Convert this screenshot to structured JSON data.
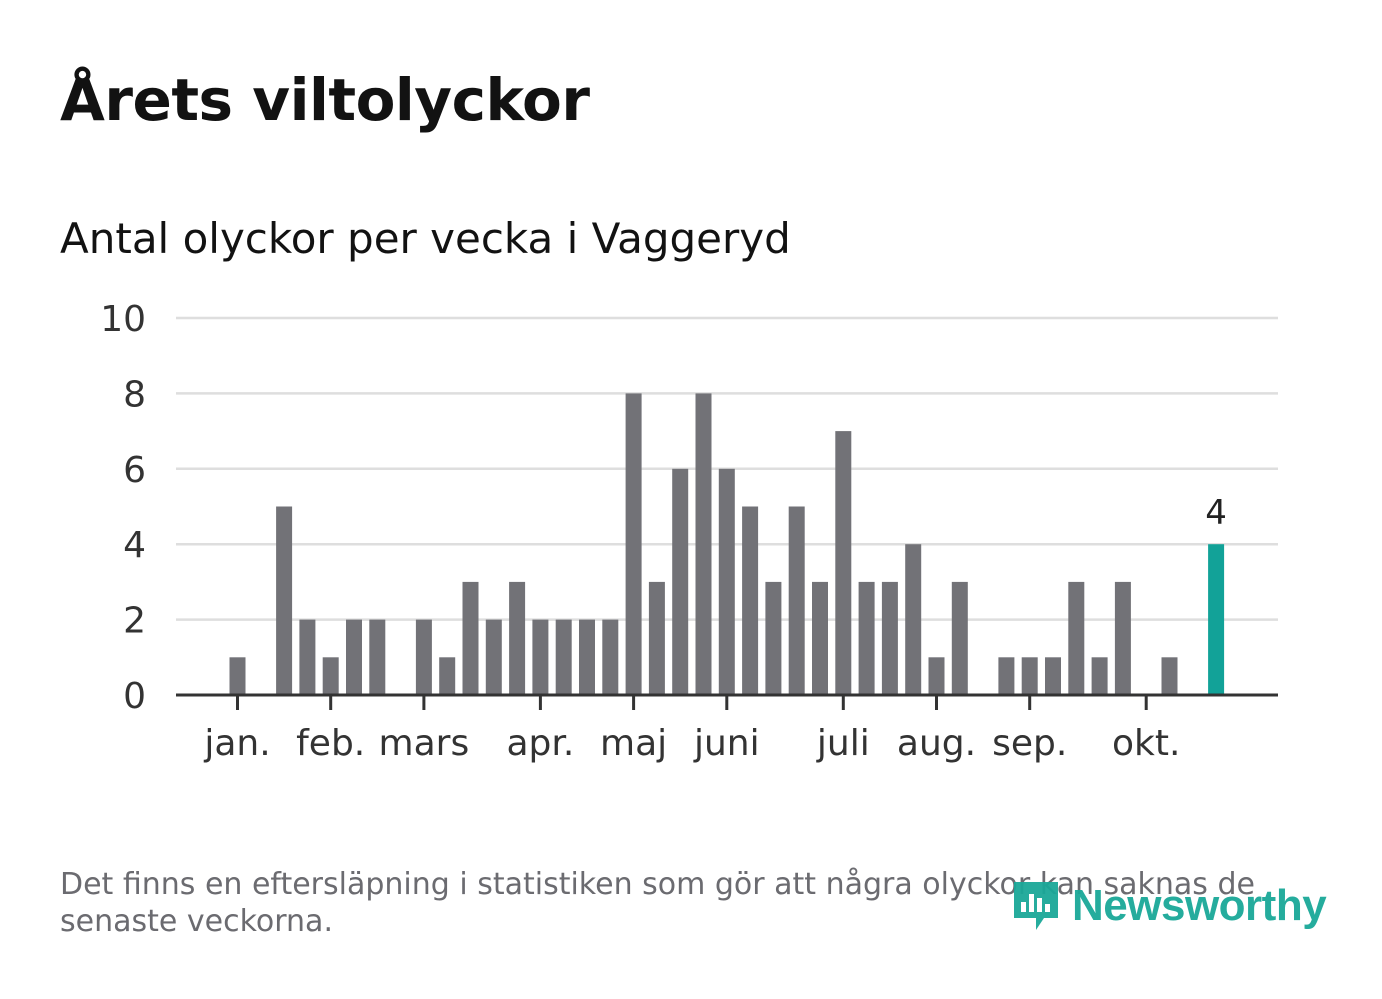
{
  "title": "Årets viltolyckor",
  "subtitle": "Antal olyckor per vecka i Vaggeryd",
  "footnote": "Det finns en eftersläpning i statistiken som gör att några olyckor kan saknas de senaste veckorna.",
  "logo": {
    "text": "Newsworthy",
    "icon": "newsworthy-logo-icon"
  },
  "colors": {
    "bar": "#727277",
    "highlight": "#12a298",
    "grid": "#dedede",
    "axis": "#333333",
    "logo": "#1aa898"
  },
  "chart_data": {
    "type": "bar",
    "title": "Antal olyckor per vecka i Vaggeryd",
    "xlabel": "",
    "ylabel": "",
    "ylim": [
      0,
      10
    ],
    "yticks": [
      0,
      2,
      4,
      6,
      8,
      10
    ],
    "grid": true,
    "weeks": [
      1,
      2,
      3,
      4,
      5,
      6,
      7,
      8,
      9,
      10,
      11,
      12,
      13,
      14,
      15,
      16,
      17,
      18,
      19,
      20,
      21,
      22,
      23,
      24,
      25,
      26,
      27,
      28,
      29,
      30,
      31,
      32,
      33,
      34,
      35,
      36,
      37,
      38,
      39,
      40,
      41,
      42,
      43
    ],
    "values": [
      1,
      0,
      5,
      2,
      1,
      2,
      2,
      0,
      2,
      1,
      3,
      2,
      3,
      2,
      2,
      2,
      2,
      8,
      3,
      6,
      8,
      6,
      5,
      3,
      5,
      3,
      7,
      3,
      3,
      4,
      1,
      3,
      0,
      1,
      1,
      1,
      3,
      1,
      3,
      0,
      1,
      0,
      4
    ],
    "highlight_index": 42,
    "highlight_label": "4",
    "month_labels": [
      {
        "label": "jan.",
        "week": 1
      },
      {
        "label": "feb.",
        "week": 5
      },
      {
        "label": "mars",
        "week": 9
      },
      {
        "label": "apr.",
        "week": 14
      },
      {
        "label": "maj",
        "week": 18
      },
      {
        "label": "juni",
        "week": 22
      },
      {
        "label": "juli",
        "week": 27
      },
      {
        "label": "aug.",
        "week": 31
      },
      {
        "label": "sep.",
        "week": 35
      },
      {
        "label": "okt.",
        "week": 40
      }
    ]
  }
}
